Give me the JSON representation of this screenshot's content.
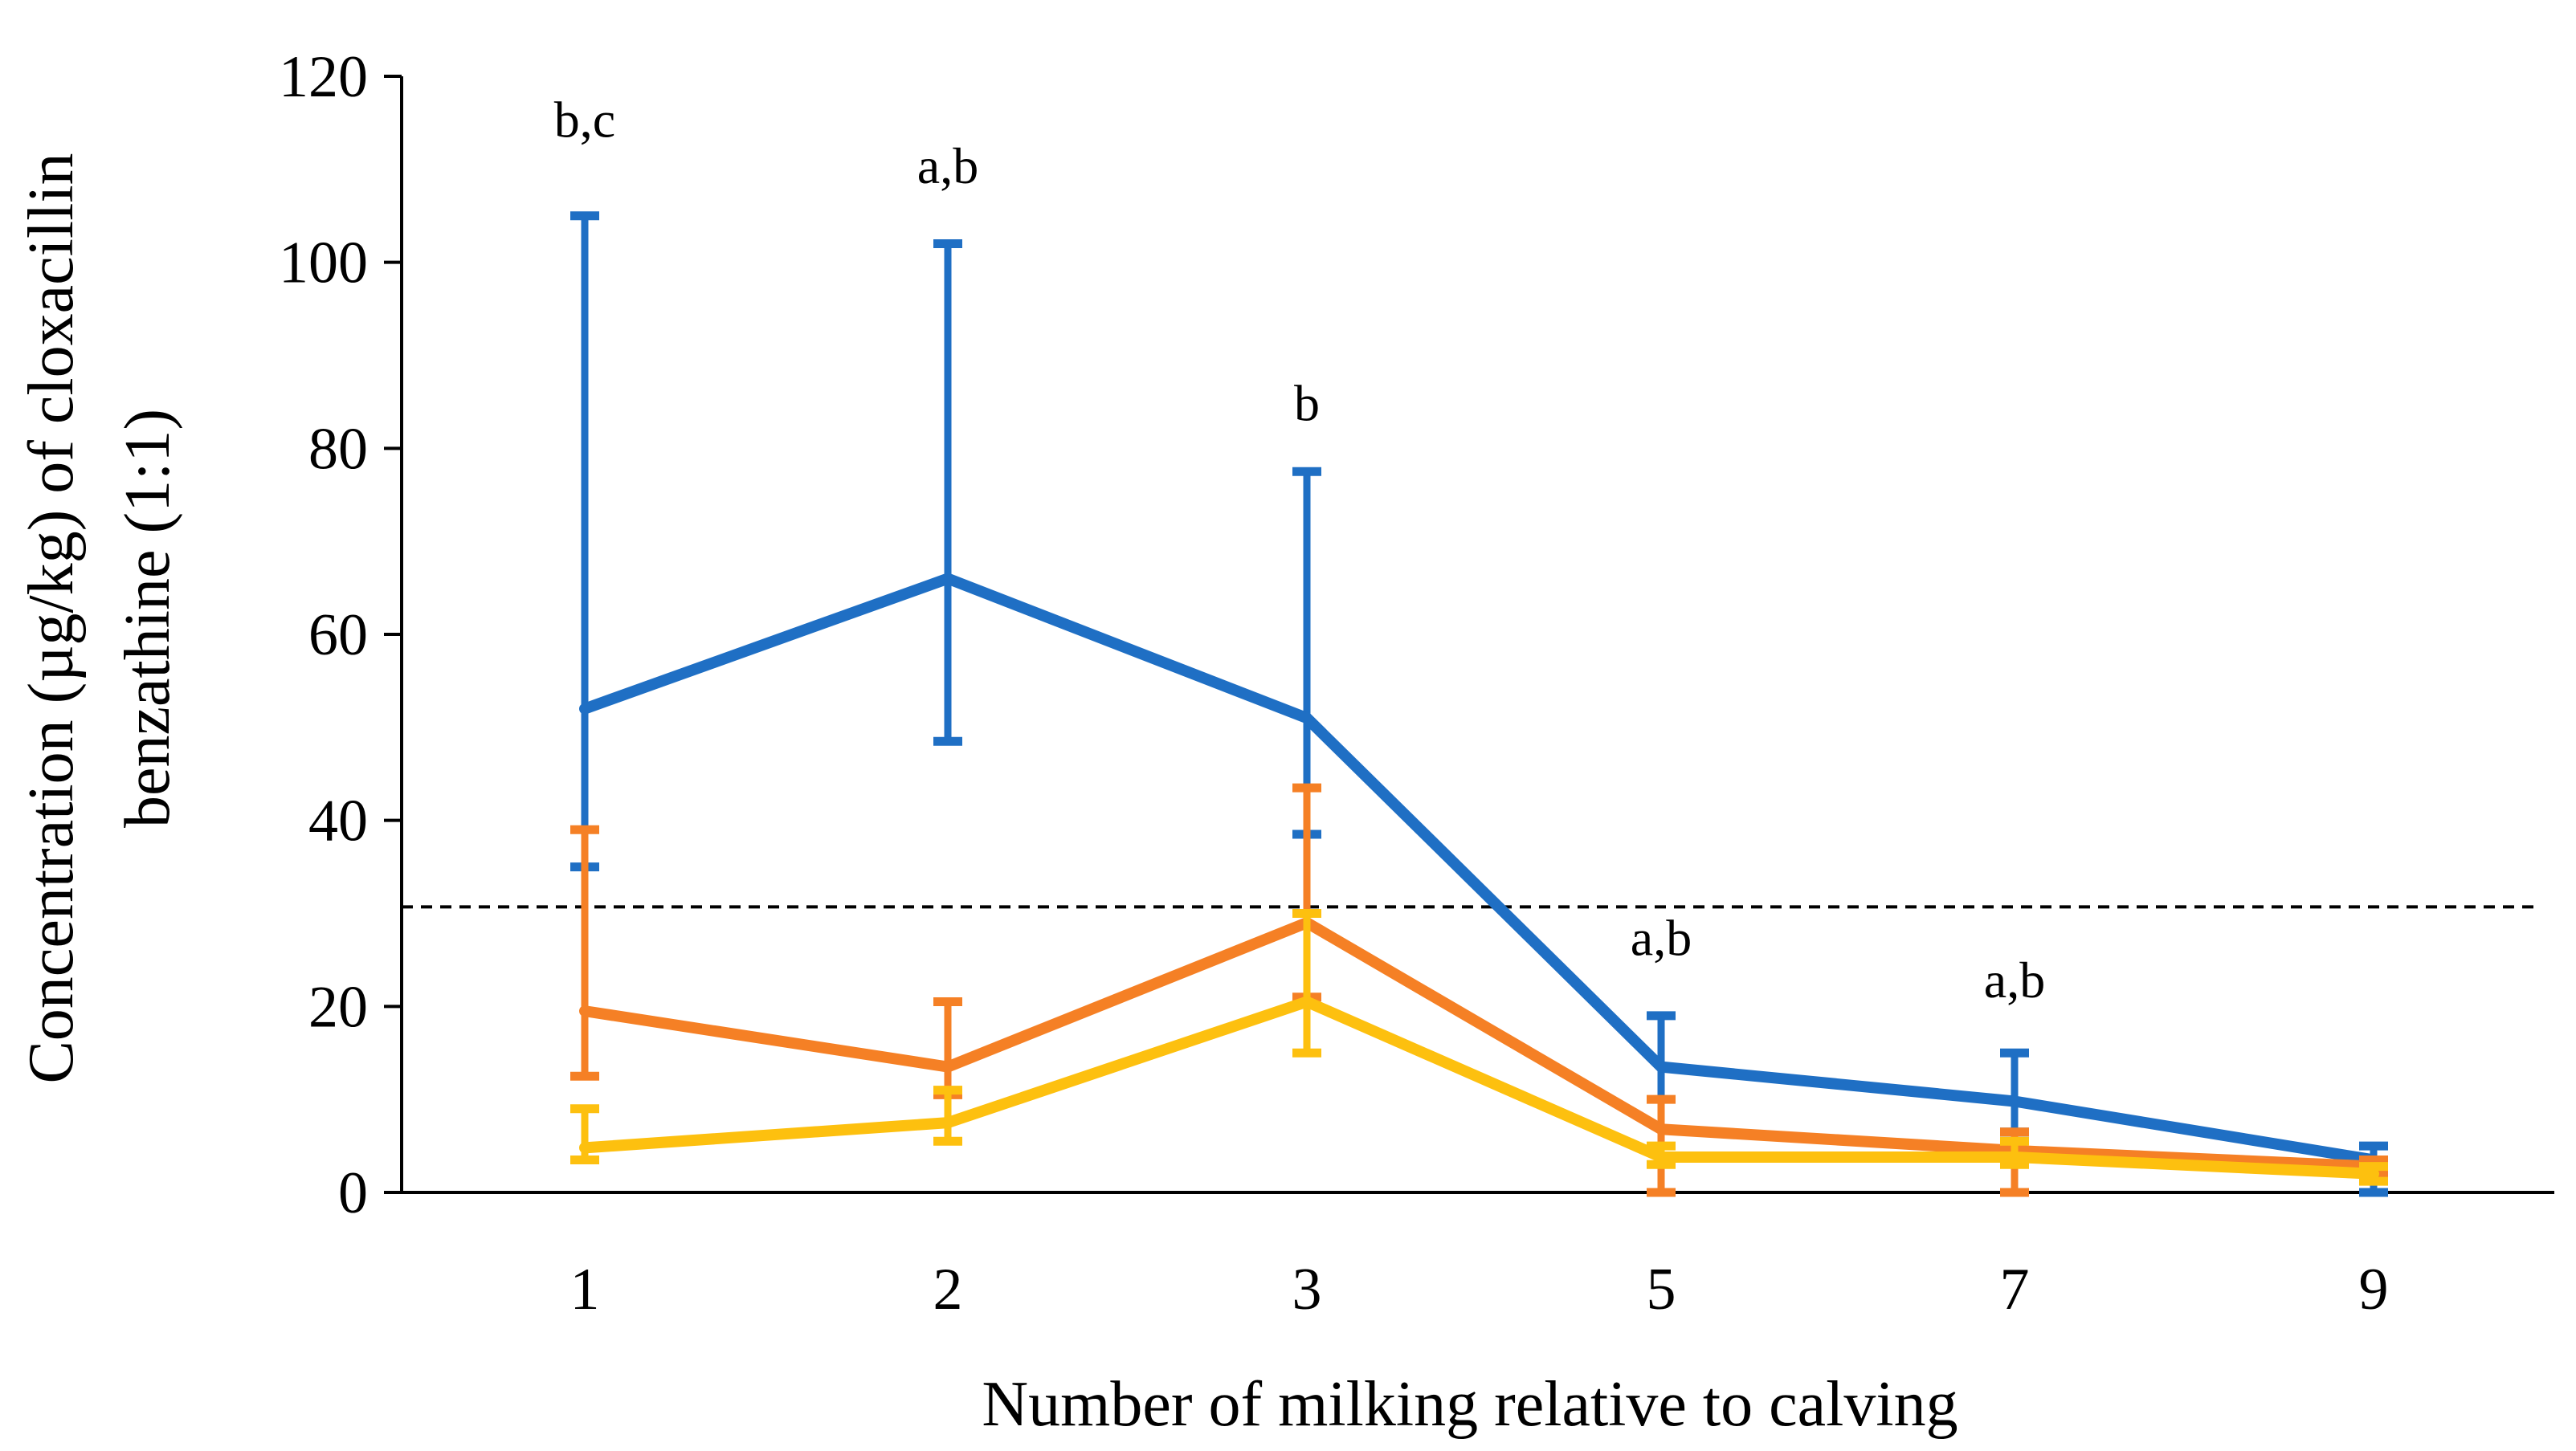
{
  "chart_data": {
    "type": "line",
    "title": "",
    "xlabel": "Number of milking relative to calving",
    "ylabel_line1": "Concentration (µg/kg) of cloxacillin",
    "ylabel_line2": "benzathine (1:1)",
    "categories": [
      "1",
      "2",
      "3",
      "5",
      "7",
      "9"
    ],
    "ylim": [
      0,
      120
    ],
    "yticks": [
      0,
      20,
      40,
      60,
      80,
      100,
      120
    ],
    "ytick_labels": [
      "0",
      "20",
      "40",
      "60",
      "80",
      "100",
      "120"
    ],
    "reference_line": {
      "value": 30.7,
      "style": "dashed",
      "color": "#000000"
    },
    "series": [
      {
        "name": "blue",
        "color": "#1f6fc4",
        "values": [
          52,
          66,
          51,
          13.5,
          9.8,
          3.5
        ],
        "err_high": [
          105,
          102,
          77.5,
          19,
          15,
          5
        ],
        "err_low": [
          35,
          48.5,
          38.5,
          0,
          6.5,
          0
        ]
      },
      {
        "name": "orange",
        "color": "#f58025",
        "values": [
          19.5,
          13.5,
          29,
          6.8,
          4.5,
          2.8
        ],
        "err_high": [
          39,
          20.5,
          43.5,
          10,
          6.5,
          3.5
        ],
        "err_low": [
          12.5,
          10.5,
          21,
          0,
          0,
          2
        ]
      },
      {
        "name": "yellow",
        "color": "#fdc00f",
        "values": [
          4.8,
          7.5,
          20.5,
          3.8,
          3.8,
          2
        ],
        "err_high": [
          9,
          11,
          30,
          5,
          5.5,
          2.8
        ],
        "err_low": [
          3.5,
          5.5,
          15,
          3,
          3,
          1.2
        ]
      }
    ],
    "annotations": [
      {
        "category": "1",
        "text": "b,c",
        "y_value": 113.5
      },
      {
        "category": "2",
        "text": "a,b",
        "y_value": 108.5
      },
      {
        "category": "3",
        "text": "b",
        "y_value": 83
      },
      {
        "category": "5",
        "text": "a,b",
        "y_value": 25.5
      },
      {
        "category": "7",
        "text": "a,b",
        "y_value": 21
      }
    ]
  }
}
